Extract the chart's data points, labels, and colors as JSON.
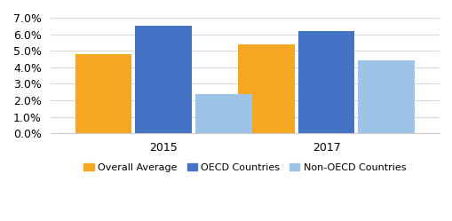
{
  "groups": [
    "2015",
    "2017"
  ],
  "series": [
    {
      "label": "Overall Average",
      "color": "#F5A623",
      "values": [
        0.048,
        0.054
      ]
    },
    {
      "label": "OECD Countries",
      "color": "#4472C4",
      "values": [
        0.065,
        0.062
      ]
    },
    {
      "label": "Non-OECD Countries",
      "color": "#9DC3E6",
      "values": [
        0.024,
        0.044
      ]
    }
  ],
  "ylim": [
    0,
    0.07
  ],
  "yticks": [
    0.0,
    0.01,
    0.02,
    0.03,
    0.04,
    0.05,
    0.06,
    0.07
  ],
  "bar_width": 0.16,
  "group_positions": [
    0.32,
    0.78
  ],
  "background_color": "#ffffff",
  "grid_color": "#d9d9d9",
  "legend_fontsize": 8,
  "axis_fontsize": 9,
  "bar_gap": 0.01
}
